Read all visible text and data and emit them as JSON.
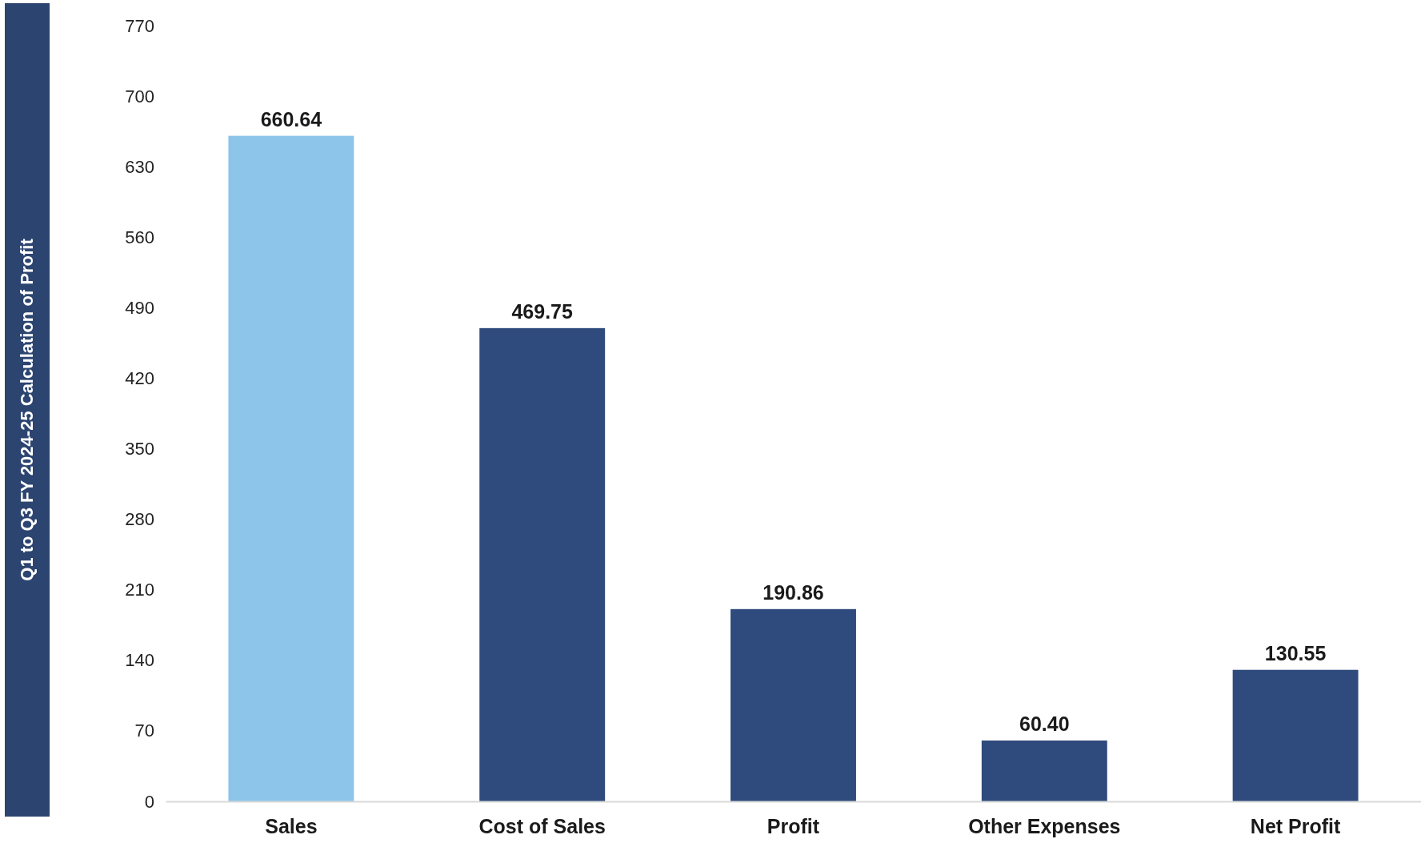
{
  "chart_data": {
    "type": "bar",
    "annotations": [
      "Q1 to Q3 FY 2024-25 Calculation of Profit"
    ],
    "categories": [
      "Sales",
      "Cost of Sales",
      "Profit",
      "Other Expenses",
      "Net Profit"
    ],
    "values": [
      660.64,
      469.75,
      190.86,
      60.4,
      130.55
    ],
    "value_labels": [
      "660.64",
      "469.75",
      "190.86",
      "60.40",
      "130.55"
    ],
    "colors": [
      "#8cc4ea",
      "#2f4a7c",
      "#2f4a7c",
      "#2f4a7c",
      "#2f4a7c"
    ],
    "ylim": [
      0,
      770
    ],
    "yticks": [
      0,
      70,
      140,
      210,
      280,
      350,
      420,
      490,
      560,
      630,
      700,
      770
    ],
    "grid": false
  }
}
